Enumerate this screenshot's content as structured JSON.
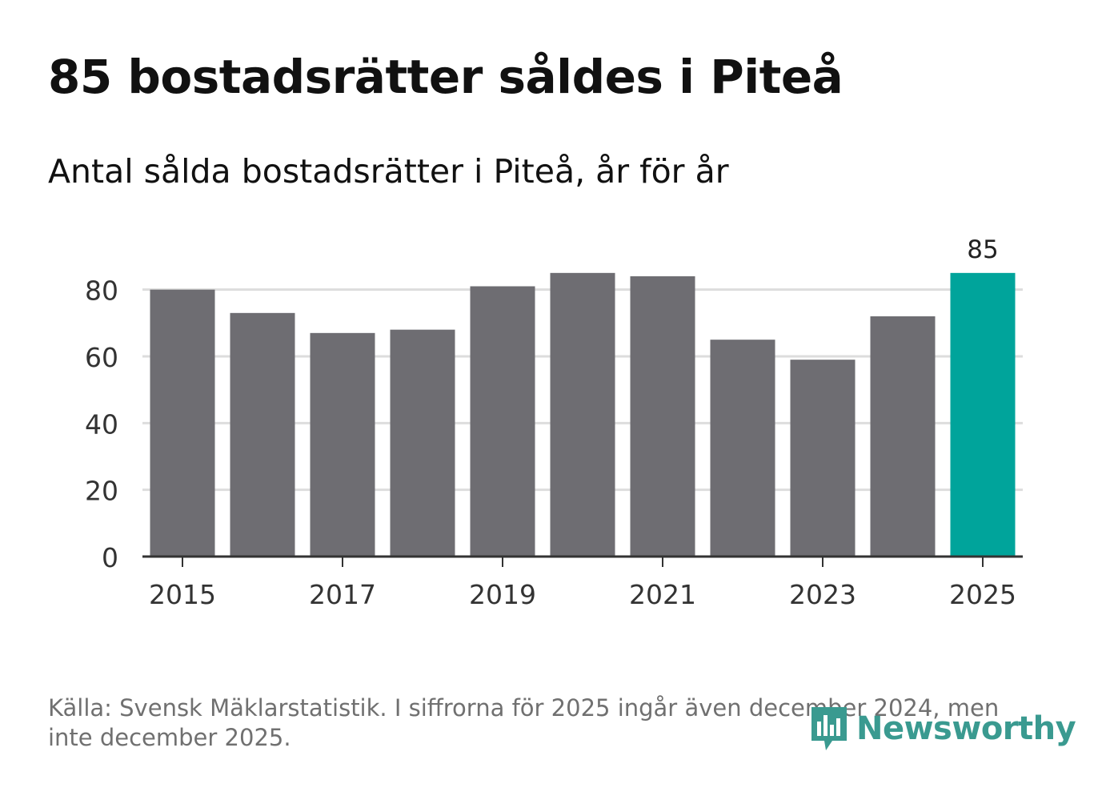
{
  "chart_data": {
    "type": "bar",
    "title": "85 bostadsrätter såldes i Piteå",
    "subtitle": "Antal sålda bostadsrätter i Piteå, år för år",
    "categories": [
      "2015",
      "2016",
      "2017",
      "2018",
      "2019",
      "2020",
      "2021",
      "2022",
      "2023",
      "2024",
      "2025"
    ],
    "values": [
      80,
      73,
      67,
      68,
      81,
      85,
      84,
      65,
      59,
      72,
      85
    ],
    "x_tick_labels": [
      "2015",
      "2017",
      "2019",
      "2021",
      "2023",
      "2025"
    ],
    "y_ticks": [
      0,
      20,
      40,
      60,
      80
    ],
    "ylim": [
      0,
      90
    ],
    "grid": true,
    "highlight": {
      "category": "2025",
      "label": "85"
    },
    "colors": {
      "bar": "#6e6d72",
      "highlight": "#00a49b",
      "grid": "#dddddd",
      "axis": "#333333"
    }
  },
  "footer": {
    "source": "Källa: Svensk Mäklarstatistik. I siffrorna för 2025 ingår även december 2024, men inte december 2025.",
    "logo_text": "Newsworthy",
    "logo_icon": "newsworthy-logo-icon",
    "logo_color": "#3a9a90"
  }
}
